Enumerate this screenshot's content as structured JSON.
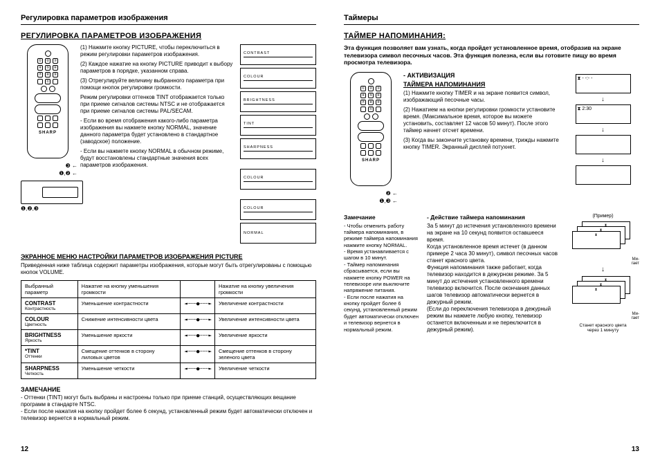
{
  "left": {
    "header": "Регулировка параметров изображения",
    "section_title": "РЕГУЛИРОВКА ПАРАМЕТРОВ ИЗОБРАЖЕНИЯ",
    "remote_brand": "SHARP",
    "callout_12": "❶,❷",
    "callout_3": "❸",
    "callout_123": "❶,❷,❸",
    "p1": "(1) Нажмите кнопку PICTURE, чтобы переключиться в режим регулировки параметров изображения.",
    "p2": "(2) Каждое нажатие на кнопку PICTURE приводит к выбору параметров в порядке, указанном справа.",
    "p3": "(3) Отрегулируйте величину выбранного параметра при помощи кнопок регулировки громкости.",
    "p4": "Режим регулировки оттенков TINT отображается только при приеме сигналов системы NTSC и не отображается при приеме сигналов системы PAL/SECAM.",
    "p5": "- Если во время отображения какого-либо параметра изображения вы нажмете кнопку NORMAL, значение данного параметра будет установлено в стандартное (заводское) положение.",
    "p6": "- Если вы нажмете кнопку NORMAL в обычном режиме, будут восстановлены стандартные значения всех параметров изображения.",
    "osd": [
      "CONTRAST",
      "COLOUR",
      "BRIGHTNESS",
      "TINT",
      "SHARPNESS",
      "COLOUR",
      "COLOUR",
      "NORMAL"
    ],
    "section2_title": "ЭКРАННОЕ МЕНЮ НАСТРОЙКИ ПАРАМЕТРОВ ИЗОБРАЖЕНИЯ PICTURE",
    "section2_intro": "Приведенная ниже таблица содержит параметры изображения, которые могут быть отрегулированы с помощью кнопок VOLUME.",
    "table": {
      "headers": [
        "Выбранный параметр",
        "Нажатие на кнопку уменьшения громкости",
        "",
        "Нажатие на кнопку увеличения громкости"
      ],
      "rows": [
        {
          "name": "CONTRAST",
          "sub": "Контрастность",
          "dec": "Уменьшение контрастности",
          "inc": "Увеличение контрастности"
        },
        {
          "name": "COLOUR",
          "sub": "Цветность",
          "dec": "Снижение интенсивности цвета",
          "inc": "Увеличение интенсивности цвета"
        },
        {
          "name": "BRIGHTNESS",
          "sub": "Яркость",
          "dec": "Уменьшение яркости",
          "inc": "Увеличение яркости"
        },
        {
          "name": "*TINT",
          "sub": "Оттенки",
          "dec": "Смещение оттенков в сторону лиловых цветов",
          "inc": "Смещение оттенков в сторону зеленого цвета"
        },
        {
          "name": "SHARPNESS",
          "sub": "Четкость",
          "dec": "Уменьшение четкости",
          "inc": "Увеличение четкости"
        }
      ]
    },
    "note_title": "ЗАМЕЧАНИЕ",
    "note_body": "- Оттенки (TINT) могут быть выбраны и настроены только при приеме станций, осуществляющих вещание программ в стандарте NTSC.\n- Если после нажатия на кнопку пройдет более 6 секунд, установленный режим будет автоматически отключен и телевизор вернется в нормальный режим.",
    "page_num": "12"
  },
  "right": {
    "header": "Таймеры",
    "section_title": "ТАЙМЕР НАПОМИНАНИЯ:",
    "intro": "Эта функция позволяет вам узнать, когда пройдет установленное время, отобразив на экране телевизора символ песочных часов. Эта функция полезна, если вы готовите пищу во время просмотра телевизора.",
    "sub1": "- АКТИВИЗАЦИЯ",
    "sub2": "ТАЙМЕРА НАПОМИНАНИЯ",
    "remote_brand": "SHARP",
    "callout_2": "❷",
    "callout_13": "❶,❸",
    "a1": "(1) Нажмите кнопку TIMER и на экране появится символ, изображающий песочные часы.",
    "a2": "(2) Нажатием на кнопки регулировки громкости установите время. (Максимальное время, которое вы можете установить, составляет 12 часов 50 минут). После этого таймер начнет отсчет времени.",
    "a3": "(3) Когда вы закончите установку времени, трижды нажмите кнопку TIMER. Экранный дисплей потухнет.",
    "ex_label": "(Пример)",
    "ex_boxes": [
      "⧗  - -:- -",
      "⧗  2:30"
    ],
    "note_title": "Замечание",
    "note_body": "- Чтобы отменить работу таймера напоминания, в режиме таймера напоминания нажмите кнопку NORMAL.\n- Время устанавливается с шагом в 10 минут.\n- Таймер напоминания сбрасывается, если вы нажмете кнопку POWER на телевизоре или выключите напряжение питания.\n- Если после нажатия на кнопку пройдет более 6 секунд, установленный режим будет автоматически отключен и телевизор вернется в нормальный режим.",
    "action_title": "- Действие таймера напоминания",
    "action_body": "За 5 минут до истечения установленного времени на экране на 10 секунд появится оставшееся время.\nКогда установленное время истечет (в данном примере 2 часа 30 минут), символ песочных часов станет красного цвета.\nФункция напоминания также работает, когда телевизор находится в дежурном режиме. За 5 минут до истечения установленного времени телевизор включится. После окончания данных шагов телевизор автоматически вернется в дежурный режим.\n(Если до переключения телевизора в дежурный режим вы нажмете любую кнопку, телевизор останется включенным и не переключится в дежурный режим).",
    "ex2_labels": [
      "Ми-\nгает",
      "Ми-\nгает",
      "Станет красного цвета\nчерез 1 минуту"
    ],
    "page_num": "13"
  }
}
